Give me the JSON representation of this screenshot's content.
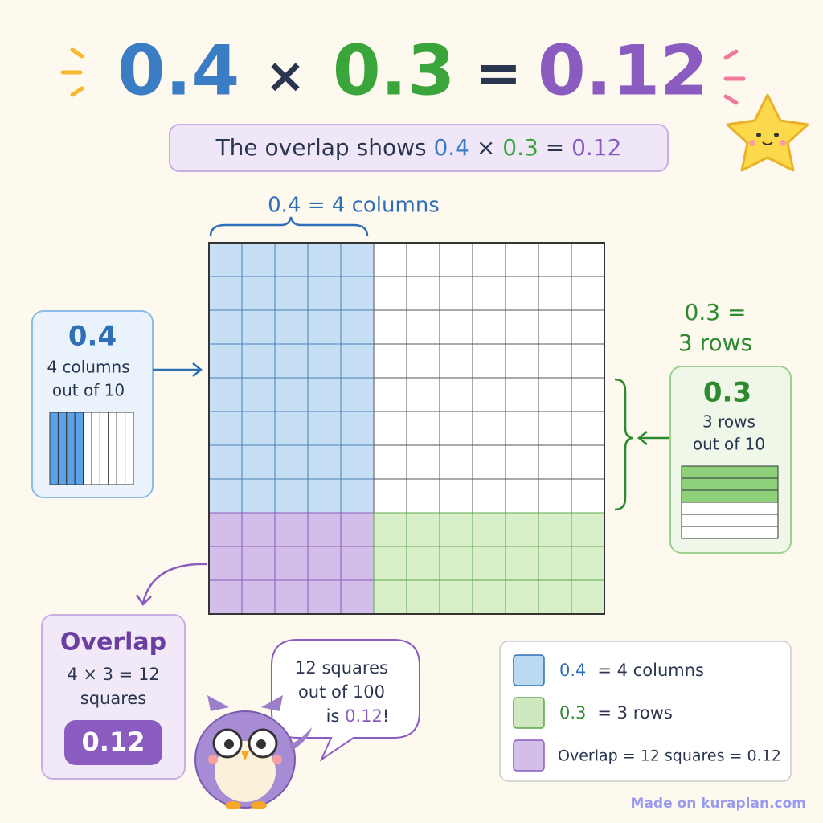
{
  "title": {
    "left": "0.4",
    "times": "×",
    "middle": "0.3",
    "equals": "=",
    "right": "0.12"
  },
  "subtitle": {
    "lead": "The overlap shows ",
    "a": "0.4",
    "times": " × ",
    "b": "0.3",
    "equals": " = ",
    "c": "0.12"
  },
  "top_label": "0.4 = 4 columns",
  "left_box": {
    "value": "0.4",
    "line1": "4 columns",
    "line2": "out of 10"
  },
  "right_label": {
    "line1": "0.3 =",
    "line2": "3 rows"
  },
  "right_box": {
    "value": "0.3",
    "line1": "3 rows",
    "line2": "out of 10"
  },
  "overlap_box": {
    "title": "Overlap",
    "line1": "4 × 3 = 12",
    "line2": "squares",
    "value": "0.12"
  },
  "speech": {
    "line1": "12 squares",
    "line2": "out of 100",
    "line3": "is ",
    "value": "0.12",
    "end": "!"
  },
  "legend": [
    {
      "value": "0.4",
      "text": "=  4 columns"
    },
    {
      "value": "0.3",
      "text": "=  3 rows"
    },
    {
      "text": "Overlap = 12 squares = 0.12"
    }
  ],
  "footer": "Made on kuraplan.com"
}
